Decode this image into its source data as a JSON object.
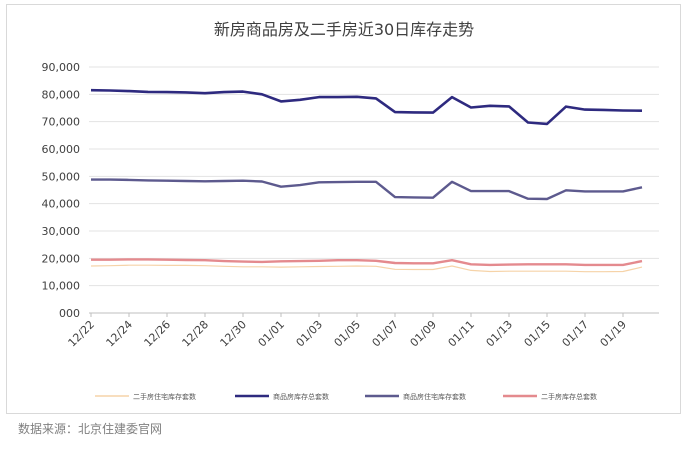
{
  "source_text": "数据来源：北京住建委官网",
  "chart_data": {
    "type": "line",
    "title": "新房商品房及二手房近30日库存走势",
    "ylim": [
      0,
      90000
    ],
    "yticks": [
      0,
      10000,
      20000,
      30000,
      40000,
      50000,
      60000,
      70000,
      80000,
      90000
    ],
    "ytick_labels": [
      "000",
      "10,000",
      "20,000",
      "30,000",
      "40,000",
      "50,000",
      "60,000",
      "70,000",
      "80,000",
      "90,000"
    ],
    "x": [
      "12/22",
      "12/23",
      "12/24",
      "12/25",
      "12/26",
      "12/27",
      "12/28",
      "12/29",
      "12/30",
      "12/31",
      "01/01",
      "01/02",
      "01/03",
      "01/04",
      "01/05",
      "01/06",
      "01/07",
      "01/08",
      "01/09",
      "01/10",
      "01/11",
      "01/12",
      "01/13",
      "01/14",
      "01/15",
      "01/16",
      "01/17",
      "01/18",
      "01/19",
      "01/20"
    ],
    "xtick_labels": [
      "12/22",
      "12/24",
      "12/26",
      "12/28",
      "12/30",
      "01/01",
      "01/03",
      "01/05",
      "01/07",
      "01/09",
      "01/11",
      "01/13",
      "01/15",
      "01/17",
      "01/19"
    ],
    "grid": true,
    "legend_position": "bottom",
    "series": [
      {
        "name": "二手房住宅库存套数",
        "color": "#f6d3a8",
        "width": 1.2,
        "values": [
          17200,
          17300,
          17500,
          17500,
          17400,
          17400,
          17300,
          17100,
          16900,
          16900,
          16800,
          16900,
          17000,
          17100,
          17200,
          17100,
          16000,
          15900,
          15900,
          17200,
          15600,
          15200,
          15300,
          15300,
          15300,
          15300,
          15100,
          15100,
          15200,
          16800
        ]
      },
      {
        "name": "商品房库存总套数",
        "color": "#2e2a7f",
        "width": 2.6,
        "values": [
          81500,
          81400,
          81200,
          80900,
          80800,
          80700,
          80400,
          80800,
          81000,
          80000,
          77400,
          78000,
          79000,
          79000,
          79100,
          78500,
          73500,
          73400,
          73300,
          79000,
          75200,
          75800,
          75600,
          69700,
          69200,
          75500,
          74400,
          74300,
          74100,
          74000
        ]
      },
      {
        "name": "商品房住宅库存套数",
        "color": "#5d5a8e",
        "width": 2.4,
        "values": [
          48800,
          48800,
          48700,
          48500,
          48400,
          48300,
          48200,
          48300,
          48400,
          48100,
          46200,
          46800,
          47800,
          47900,
          48000,
          48000,
          42400,
          42300,
          42200,
          48000,
          44600,
          44600,
          44600,
          41800,
          41700,
          44900,
          44500,
          44500,
          44500,
          46000
        ]
      },
      {
        "name": "二手房库存总套数",
        "color": "#e48a8e",
        "width": 2.4,
        "values": [
          19500,
          19500,
          19600,
          19600,
          19500,
          19400,
          19300,
          19000,
          18800,
          18700,
          18900,
          19000,
          19100,
          19300,
          19300,
          19100,
          18300,
          18200,
          18200,
          19300,
          17800,
          17600,
          17700,
          17800,
          17800,
          17800,
          17600,
          17600,
          17600,
          19000
        ]
      }
    ]
  }
}
